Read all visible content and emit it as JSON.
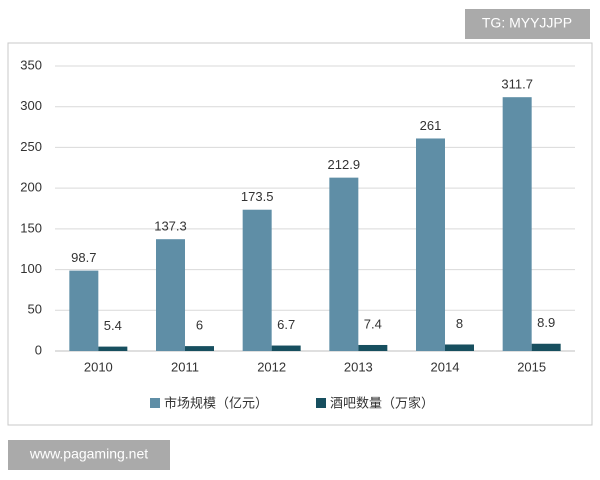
{
  "chart_data": {
    "type": "bar",
    "categories": [
      "2010",
      "2011",
      "2012",
      "2013",
      "2014",
      "2015"
    ],
    "series": [
      {
        "name": "市场规模（亿元）",
        "color": "#5f8ea6",
        "values": [
          98.7,
          137.3,
          173.5,
          212.9,
          261,
          311.7
        ]
      },
      {
        "name": "酒吧数量（万家）",
        "color": "#174f5f",
        "values": [
          5.4,
          6,
          6.7,
          7.4,
          8,
          8.9
        ]
      }
    ],
    "ylim": [
      0,
      350
    ],
    "yticks": [
      0,
      50,
      100,
      150,
      200,
      250,
      300,
      350
    ],
    "grid": true,
    "legend": "bottom"
  },
  "watermark_top": "TG: MYYJJPP",
  "watermark_bottom": "www.pagaming.net"
}
